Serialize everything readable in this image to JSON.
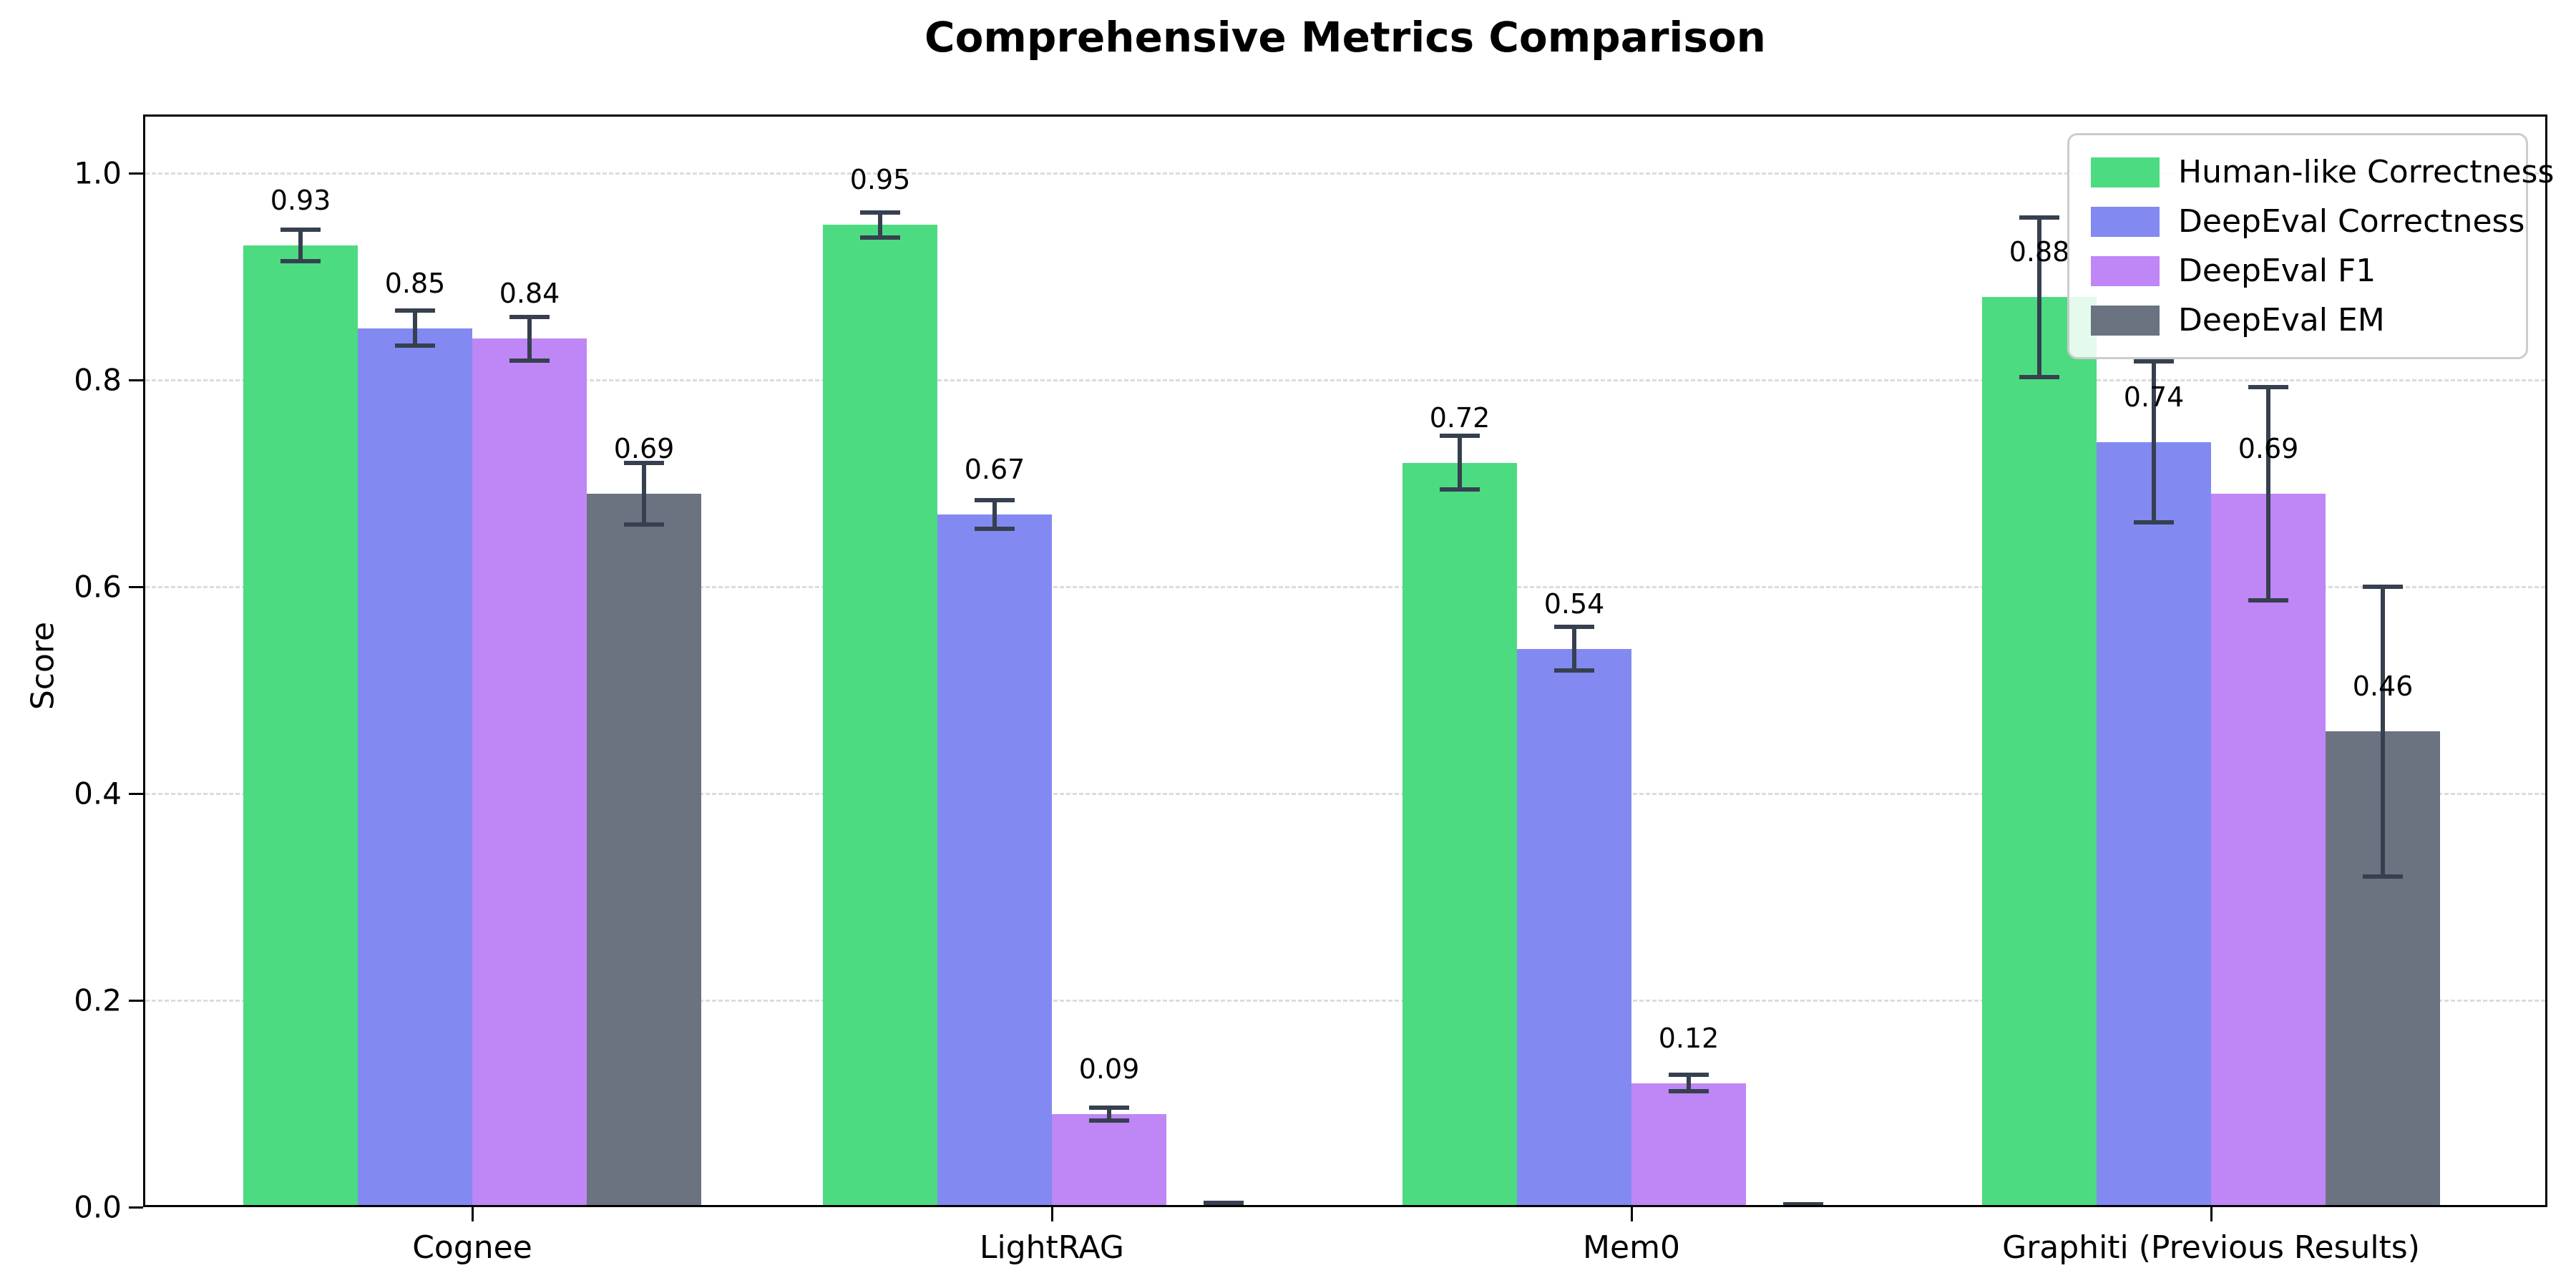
{
  "chart_data": {
    "type": "bar",
    "title": "Comprehensive Metrics Comparison",
    "ylabel": "Score",
    "xlabel": "",
    "categories": [
      "Cognee",
      "LightRAG",
      "Mem0",
      "Graphiti (Previous Results)"
    ],
    "series": [
      {
        "name": "Human-like Correctness",
        "color": "#4cdb81",
        "values": [
          0.93,
          0.95,
          0.72,
          0.88
        ],
        "errors": [
          0.015,
          0.012,
          0.026,
          0.077
        ],
        "labels": [
          "0.93",
          "0.95",
          "0.72",
          "0.88"
        ]
      },
      {
        "name": "DeepEval Correctness",
        "color": "#8289f1",
        "values": [
          0.85,
          0.67,
          0.54,
          0.74
        ],
        "errors": [
          0.017,
          0.014,
          0.021,
          0.078
        ],
        "labels": [
          "0.85",
          "0.67",
          "0.54",
          "0.74"
        ]
      },
      {
        "name": "DeepEval F1",
        "color": "#bf86f6",
        "values": [
          0.84,
          0.09,
          0.12,
          0.69
        ],
        "errors": [
          0.021,
          0.006,
          0.008,
          0.103
        ],
        "labels": [
          "0.84",
          "0.09",
          "0.12",
          "0.69"
        ]
      },
      {
        "name": "DeepEval EM",
        "color": "#6b7280",
        "values": [
          0.69,
          0.0,
          0.0,
          0.46
        ],
        "errors": [
          0.03,
          0.004,
          0.003,
          0.14
        ],
        "labels": [
          "0.69",
          "",
          "",
          "0.46"
        ]
      }
    ],
    "yticks": [
      "0.0",
      "0.2",
      "0.4",
      "0.6",
      "0.8",
      "1.0"
    ],
    "ylim": [
      0,
      1.056
    ],
    "grid": "horizontal-dashed",
    "legend_position": "upper right",
    "errorbar_color": "#36404f"
  }
}
